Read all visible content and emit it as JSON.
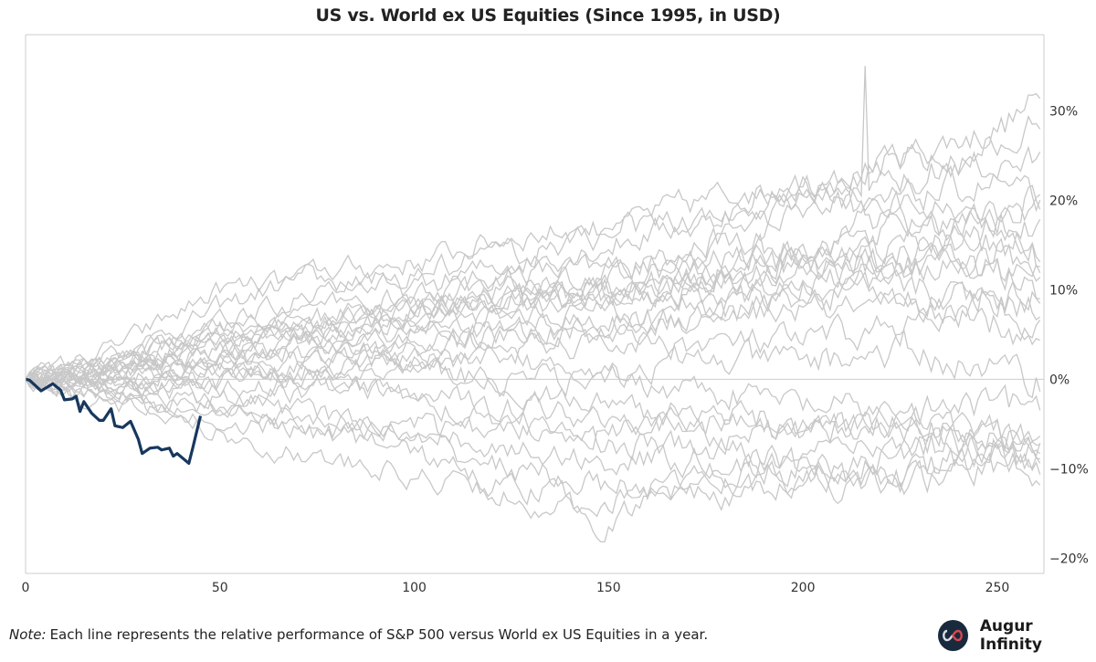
{
  "chart_data": {
    "type": "line",
    "title": "US vs. World ex US Equities (Since 1995, in USD)",
    "xlabel": "",
    "ylabel": "",
    "xlim": [
      0,
      262
    ],
    "ylim": [
      -21.7,
      38.5
    ],
    "x_ticks": [
      0,
      50,
      100,
      150,
      200,
      250
    ],
    "x_tick_labels": [
      "0",
      "50",
      "100",
      "150",
      "200",
      "250"
    ],
    "y_ticks": [
      -20,
      -10,
      0,
      10,
      20,
      30
    ],
    "y_tick_labels": [
      "−20%",
      "−10%",
      "0%",
      "10%",
      "20%",
      "30%"
    ],
    "y_axis_side": "right",
    "grid": false,
    "zero_line": true,
    "colors": {
      "highlight": "#17375e",
      "background_lines": "#c8c8c8",
      "axis": "#cccccc"
    },
    "background_series_anchor_days": [
      0,
      25,
      50,
      75,
      100,
      125,
      150,
      175,
      200,
      225,
      250,
      261
    ],
    "background_series": [
      {
        "values": [
          0,
          2,
          5,
          6,
          9,
          12,
          12,
          15,
          20,
          25,
          28,
          31
        ]
      },
      {
        "values": [
          0,
          3,
          8,
          12,
          13,
          16,
          17,
          20,
          22,
          24,
          24,
          24
        ]
      },
      {
        "values": [
          0,
          4,
          10,
          11,
          10,
          13,
          15,
          18,
          22,
          17,
          18,
          20
        ]
      },
      {
        "values": [
          0,
          2,
          6,
          7,
          8,
          10,
          9,
          12,
          14,
          20,
          22,
          19
        ]
      },
      {
        "values": [
          0,
          1,
          4,
          6,
          8,
          8,
          11,
          13,
          15,
          17,
          18,
          16
        ]
      },
      {
        "values": [
          0,
          2,
          5,
          5,
          7,
          9,
          10,
          10,
          13,
          14,
          17,
          13
        ]
      },
      {
        "values": [
          0,
          1,
          3,
          5,
          6,
          8,
          9,
          11,
          12,
          11,
          14,
          12
        ]
      },
      {
        "values": [
          0,
          0,
          2,
          4,
          6,
          7,
          8,
          9,
          11,
          13,
          12,
          10
        ]
      },
      {
        "values": [
          0,
          1,
          1,
          3,
          5,
          5,
          6,
          8,
          10,
          9,
          10,
          9
        ]
      },
      {
        "values": [
          0,
          -1,
          2,
          2,
          4,
          6,
          6,
          7,
          9,
          10,
          9,
          8
        ]
      },
      {
        "values": [
          0,
          1,
          0,
          2,
          3,
          5,
          5,
          7,
          8,
          7,
          8,
          7
        ]
      },
      {
        "values": [
          0,
          0,
          1,
          1,
          2,
          3,
          4,
          4,
          4,
          6,
          6,
          4
        ]
      },
      {
        "values": [
          0,
          -1,
          0,
          1,
          2,
          2,
          1,
          2,
          2,
          3,
          1,
          0
        ]
      },
      {
        "values": [
          0,
          -1,
          -1,
          0,
          1,
          0,
          0,
          -1,
          -3,
          -4,
          -3,
          -3
        ]
      },
      {
        "values": [
          0,
          -2,
          -3,
          -1,
          -2,
          -3,
          -4,
          -4,
          -5,
          -5,
          -6,
          -7
        ]
      },
      {
        "values": [
          0,
          -2,
          -4,
          -6,
          -5,
          -8,
          -9,
          -9,
          -10,
          -12,
          -9,
          -8
        ]
      },
      {
        "values": [
          0,
          -1,
          -2,
          -4,
          -6,
          -5,
          -7,
          -8,
          -9,
          -11,
          -8,
          -9
        ]
      },
      {
        "values": [
          0,
          -3,
          -6,
          -9,
          -11,
          -12,
          -14,
          -11,
          -12,
          -11,
          -10,
          -10
        ]
      },
      {
        "values": [
          0,
          -2,
          -5,
          -4,
          -7,
          -10,
          -12,
          -13,
          -12,
          -8,
          -7,
          -8
        ]
      },
      {
        "values": [
          0,
          -1,
          -3,
          -6,
          -8,
          -13,
          -16,
          -11,
          -9,
          -7,
          -7,
          -8
        ]
      },
      {
        "values": [
          0,
          2,
          6,
          8,
          9,
          11,
          10,
          11,
          13,
          15,
          15,
          15
        ]
      },
      {
        "values": [
          0,
          1,
          3,
          5,
          8,
          9,
          8,
          12,
          14,
          13,
          12,
          11
        ]
      },
      {
        "values": [
          0,
          2,
          4,
          6,
          7,
          10,
          12,
          14,
          18,
          22,
          26,
          30
        ],
        "spike": [
          216,
          35
        ]
      },
      {
        "values": [
          0,
          1,
          2,
          0,
          -2,
          -5,
          -6,
          -4,
          -6,
          -5,
          -7,
          -8
        ]
      },
      {
        "values": [
          0,
          1,
          3,
          4,
          2,
          -1,
          -3,
          -6,
          -6,
          -5,
          -6,
          -7
        ]
      },
      {
        "values": [
          0,
          3,
          6,
          10,
          12,
          14,
          16,
          18,
          21,
          20,
          18,
          21
        ]
      }
    ],
    "highlight_series": {
      "x": [
        0,
        1,
        3,
        4,
        7,
        9,
        10,
        12,
        13,
        14,
        15,
        17,
        19,
        20,
        22,
        23,
        25,
        27,
        29,
        30,
        32,
        34,
        35,
        37,
        38,
        39,
        42,
        43,
        45
      ],
      "y": [
        0,
        -0.1,
        -0.9,
        -1.3,
        -0.5,
        -1.2,
        -2.3,
        -2.2,
        -1.9,
        -3.6,
        -2.5,
        -3.8,
        -4.6,
        -4.6,
        -3.3,
        -5.2,
        -5.4,
        -4.7,
        -6.7,
        -8.3,
        -7.7,
        -7.6,
        -7.9,
        -7.7,
        -8.6,
        -8.3,
        -9.4,
        -7.7,
        -4.1
      ]
    }
  },
  "footer": {
    "note_label": "Note:",
    "note_text": "Each line represents the relative performance of S&P 500 versus World ex US Equities in a year.",
    "brand_name": "Augur Infinity",
    "logo_icon": "infinity-icon"
  }
}
